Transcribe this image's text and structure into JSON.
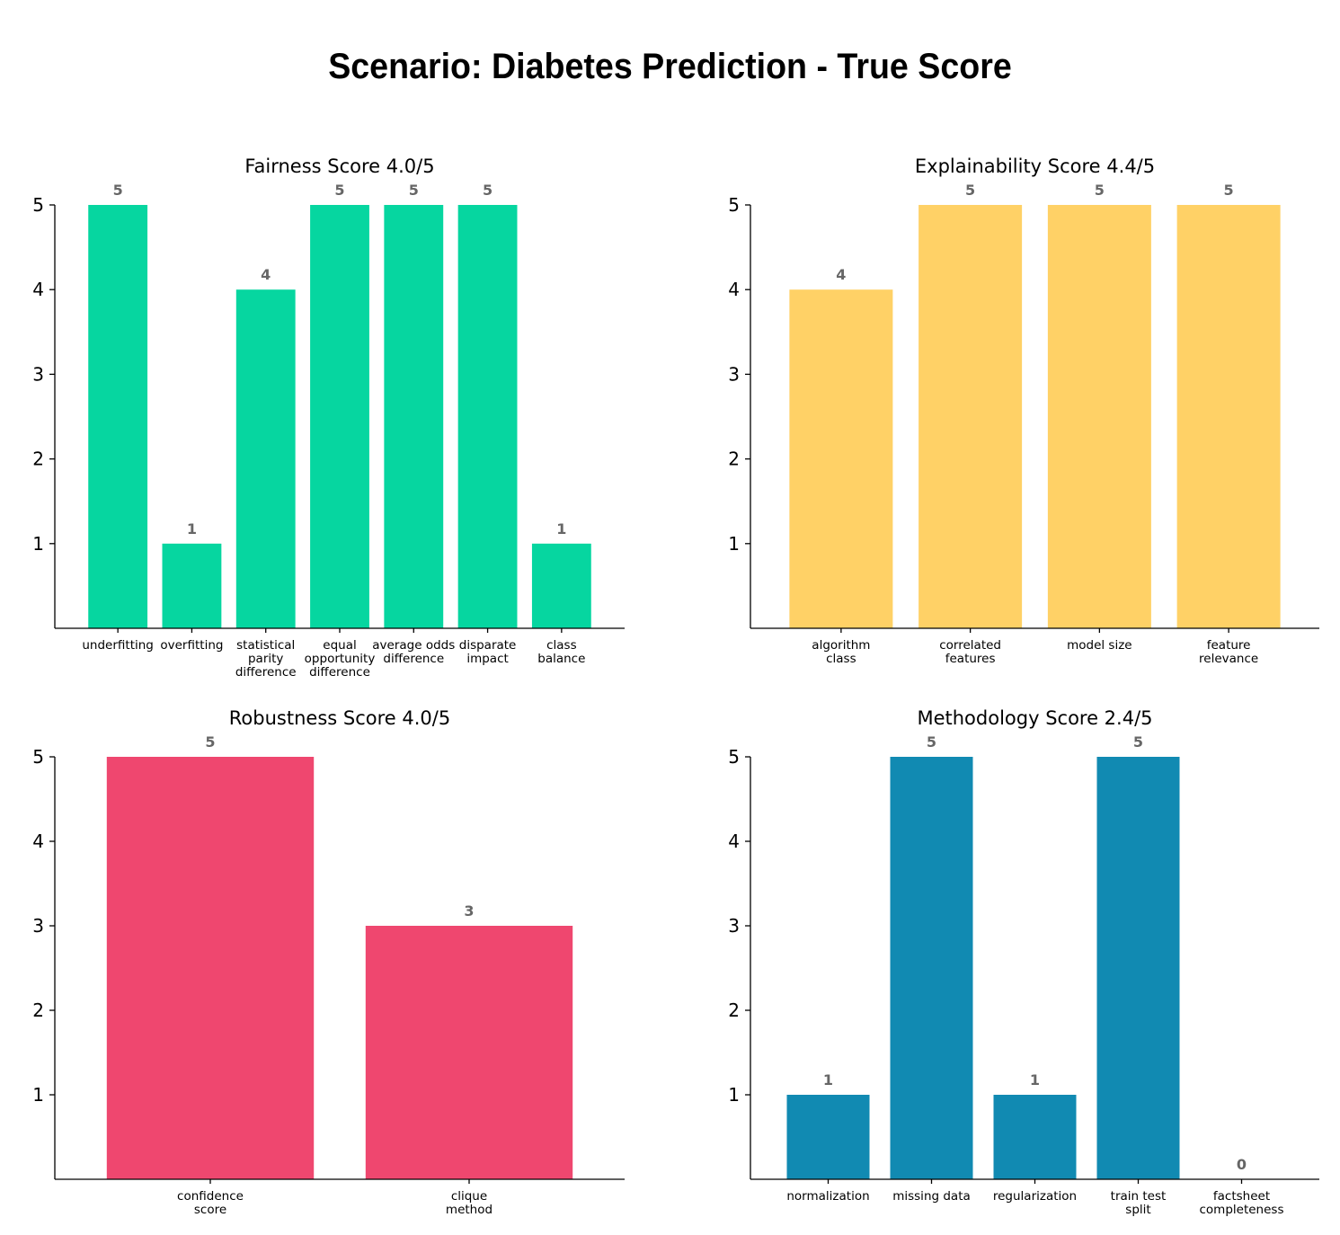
{
  "figure_title": "Scenario: Diabetes Prediction - True Score",
  "chart_data": [
    {
      "type": "bar",
      "title": "Fairness Score 4.0/5",
      "color": "#06d6a0",
      "categories": [
        "underfitting",
        "overfitting",
        "statistical\nparity\ndifference",
        "equal\nopportunity\ndifference",
        "average odds\ndifference",
        "disparate\nimpact",
        "class\nbalance"
      ],
      "values": [
        5,
        1,
        4,
        5,
        5,
        5,
        1
      ],
      "yticks": [
        1,
        2,
        3,
        4,
        5
      ],
      "ylim": [
        0,
        5
      ],
      "xlabel": "",
      "ylabel": ""
    },
    {
      "type": "bar",
      "title": "Explainability Score 4.4/5",
      "color": "#ffd166",
      "categories": [
        "algorithm\nclass",
        "correlated\nfeatures",
        "model size",
        "feature\nrelevance"
      ],
      "values": [
        4,
        5,
        5,
        5
      ],
      "yticks": [
        1,
        2,
        3,
        4,
        5
      ],
      "ylim": [
        0,
        5
      ],
      "xlabel": "",
      "ylabel": ""
    },
    {
      "type": "bar",
      "title": "Robustness Score 4.0/5",
      "color": "#ef476f",
      "categories": [
        "confidence\nscore",
        "clique\nmethod"
      ],
      "values": [
        5,
        3
      ],
      "yticks": [
        1,
        2,
        3,
        4,
        5
      ],
      "ylim": [
        0,
        5
      ],
      "xlabel": "",
      "ylabel": ""
    },
    {
      "type": "bar",
      "title": "Methodology Score 2.4/5",
      "color": "#118ab2",
      "categories": [
        "normalization",
        "missing data",
        "regularization",
        "train test\nsplit",
        "factsheet\ncompleteness"
      ],
      "values": [
        1,
        5,
        1,
        5,
        0
      ],
      "yticks": [
        1,
        2,
        3,
        4,
        5
      ],
      "ylim": [
        0,
        5
      ],
      "xlabel": "",
      "ylabel": ""
    }
  ]
}
